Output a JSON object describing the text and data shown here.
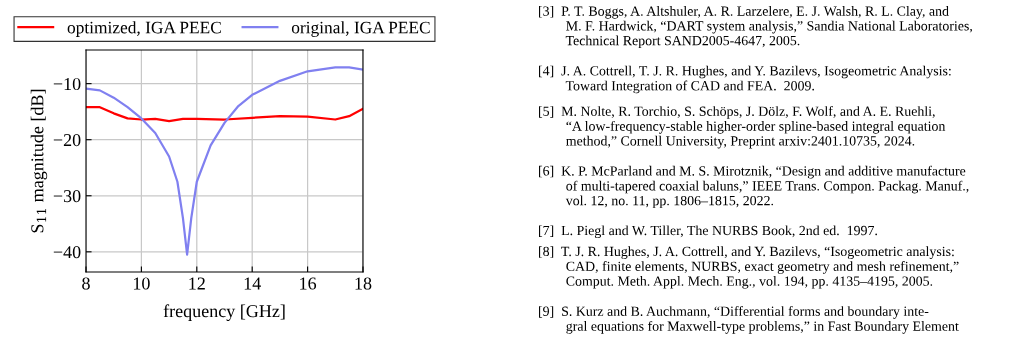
{
  "chart_data": {
    "type": "line",
    "xlabel": "frequency [GHz]",
    "ylabel": "S$_{11}$ magnitude [dB]",
    "xlim": [
      8,
      18
    ],
    "xticks": [
      8,
      10,
      12,
      14,
      16,
      18
    ],
    "ylim": [
      -43.6,
      -4
    ],
    "yticks": [
      {
        "value": -40,
        "label": "−40"
      },
      {
        "value": -30,
        "label": "−30"
      },
      {
        "value": -20,
        "label": "−20"
      },
      {
        "value": -10,
        "label": "−10"
      }
    ],
    "grid": true,
    "legend": "top",
    "marker": "none",
    "line_style": "solid",
    "series": [
      {
        "name": "optimized, IGA PEEC",
        "color": "#ff0000",
        "x": [
          8,
          8.5,
          9,
          9.5,
          10,
          10.5,
          11,
          11.5,
          12,
          13,
          14,
          15,
          16,
          17,
          17.5,
          18
        ],
        "values": [
          -14.2,
          -14.2,
          -15.3,
          -16.2,
          -16.4,
          -16.3,
          -16.7,
          -16.3,
          -16.3,
          -16.4,
          -16.1,
          -15.8,
          -15.9,
          -16.4,
          -15.8,
          -14.5
        ]
      },
      {
        "name": "original, IGA PEEC",
        "color": "#8080f0",
        "x": [
          8,
          8.5,
          9,
          9.5,
          10,
          10.5,
          11,
          11.3,
          11.5,
          11.65,
          11.8,
          12,
          12.5,
          13,
          13.5,
          14,
          15,
          16,
          17,
          17.5,
          18
        ],
        "values": [
          -10.9,
          -11.2,
          -12.5,
          -14.2,
          -16.2,
          -18.8,
          -23,
          -27.5,
          -34,
          -40.5,
          -34,
          -27.5,
          -21,
          -17,
          -14,
          -12,
          -9.5,
          -7.8,
          -7.1,
          -7.1,
          -7.5
        ]
      }
    ],
    "annotations": [
      "[3]  P. T. Boggs, A. Altshuler, A. R. Larzelere, E. J. Walsh, R. L. Clay, and\n        M. F. Hardwick, “DART system analysis,” Sandia National Laboratories,\n        Technical Report SAND2005-4647, 2005.",
      "[4]  J. A. Cottrell, T. J. R. Hughes, and Y. Bazilevs, Isogeometric Analysis:\n        Toward Integration of CAD and FEA.  2009.",
      "[5]  M. Nolte, R. Torchio, S. Schöps, J. Dölz, F. Wolf, and A. E. Ruehli,\n        “A low-frequency-stable higher-order spline-based integral equation\n        method,” Cornell University, Preprint arxiv:2401.10735, 2024.",
      "[6]  K. P. McParland and M. S. Mirotznik, “Design and additive manufacture\n        of multi-tapered coaxial baluns,” IEEE Trans. Compon. Packag. Manuf.,\n        vol. 12, no. 11, pp. 1806–1815, 2022.",
      "[7]  L. Piegl and W. Tiller, The NURBS Book, 2nd ed.  1997.",
      "[8]  T. J. R. Hughes, J. A. Cottrell, and Y. Bazilevs, “Isogeometric analysis:\n        CAD, finite elements, NURBS, exact geometry and mesh refinement,”\n        Comput. Meth. Appl. Mech. Eng., vol. 194, pp. 4135–4195, 2005.",
      "[9]  S. Kurz and B. Auchmann, “Differential forms and boundary inte-\n        gral equations for Maxwell-type problems,” in Fast Boundary Element"
    ]
  }
}
